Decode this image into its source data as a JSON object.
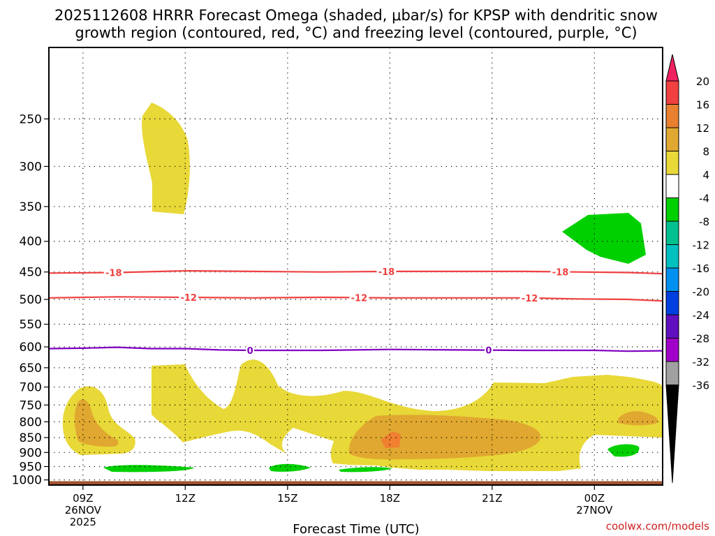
{
  "chart_data": {
    "type": "contour",
    "title_line1": "2025112608 HRRR Forecast Omega (shaded, μbar/s) for KPSP with dendritic snow",
    "title_line2": "growth region (contoured, red, °C) and freezing level (contoured, purple, °C)",
    "xlabel": "Forecast Time (UTC)",
    "credit": "coolwx.com/models",
    "x_range": [
      8.0,
      26.0
    ],
    "y_range": [
      1020,
      190
    ],
    "x_ticks": [
      {
        "x": 9,
        "label": "09Z",
        "sub1": "26NOV",
        "sub2": "2025"
      },
      {
        "x": 12,
        "label": "12Z",
        "sub1": "",
        "sub2": ""
      },
      {
        "x": 15,
        "label": "15Z",
        "sub1": "",
        "sub2": ""
      },
      {
        "x": 18,
        "label": "18Z",
        "sub1": "",
        "sub2": ""
      },
      {
        "x": 21,
        "label": "21Z",
        "sub1": "",
        "sub2": ""
      },
      {
        "x": 24,
        "label": "00Z",
        "sub1": "27NOV",
        "sub2": ""
      }
    ],
    "y_ticks": [
      "250",
      "300",
      "350",
      "400",
      "450",
      "500",
      "550",
      "600",
      "650",
      "700",
      "750",
      "800",
      "850",
      "900",
      "950",
      "1000"
    ],
    "ground_level_hPa": 1005,
    "contours": [
      {
        "name": "-18",
        "color": "#f04040",
        "labels": [
          9.9,
          17.9,
          23.0
        ],
        "points": [
          [
            8,
            452
          ],
          [
            10,
            451
          ],
          [
            12,
            448
          ],
          [
            14,
            449
          ],
          [
            16,
            450
          ],
          [
            18,
            449
          ],
          [
            20,
            449
          ],
          [
            22,
            449
          ],
          [
            23.5,
            450
          ],
          [
            25,
            451
          ],
          [
            26,
            453
          ]
        ]
      },
      {
        "name": "-12",
        "color": "#f04040",
        "labels": [
          12.1,
          17.1,
          22.1
        ],
        "points": [
          [
            8,
            497
          ],
          [
            10,
            495
          ],
          [
            12,
            496
          ],
          [
            14,
            497
          ],
          [
            16,
            496
          ],
          [
            18,
            497
          ],
          [
            20,
            497
          ],
          [
            22,
            497
          ],
          [
            23.5,
            499
          ],
          [
            25,
            500
          ],
          [
            26,
            503
          ]
        ]
      },
      {
        "name": "0",
        "color": "#8000c0",
        "labels": [
          13.9,
          20.9
        ],
        "points": [
          [
            8,
            604
          ],
          [
            9,
            603
          ],
          [
            10,
            601
          ],
          [
            11,
            604
          ],
          [
            12,
            604
          ],
          [
            13,
            607
          ],
          [
            14,
            608
          ],
          [
            16,
            608
          ],
          [
            18,
            606
          ],
          [
            20,
            607
          ],
          [
            22,
            608
          ],
          [
            24,
            608
          ],
          [
            25,
            610
          ],
          [
            26,
            609
          ]
        ]
      }
    ],
    "colorbar": {
      "ticks": [
        "20",
        "16",
        "12",
        "8",
        "4",
        "-4",
        "-8",
        "-12",
        "-16",
        "-20",
        "-24",
        "-28",
        "-32",
        "-36"
      ],
      "colors": [
        "#f02060",
        "#f04040",
        "#e88030",
        "#e0a830",
        "#e8d838",
        "#ffffff",
        "#00d000",
        "#00c090",
        "#00c0c0",
        "#0090f0",
        "#0040e0",
        "#6010c0",
        "#a000c8",
        "#a0a0a0",
        "#000000"
      ]
    }
  }
}
